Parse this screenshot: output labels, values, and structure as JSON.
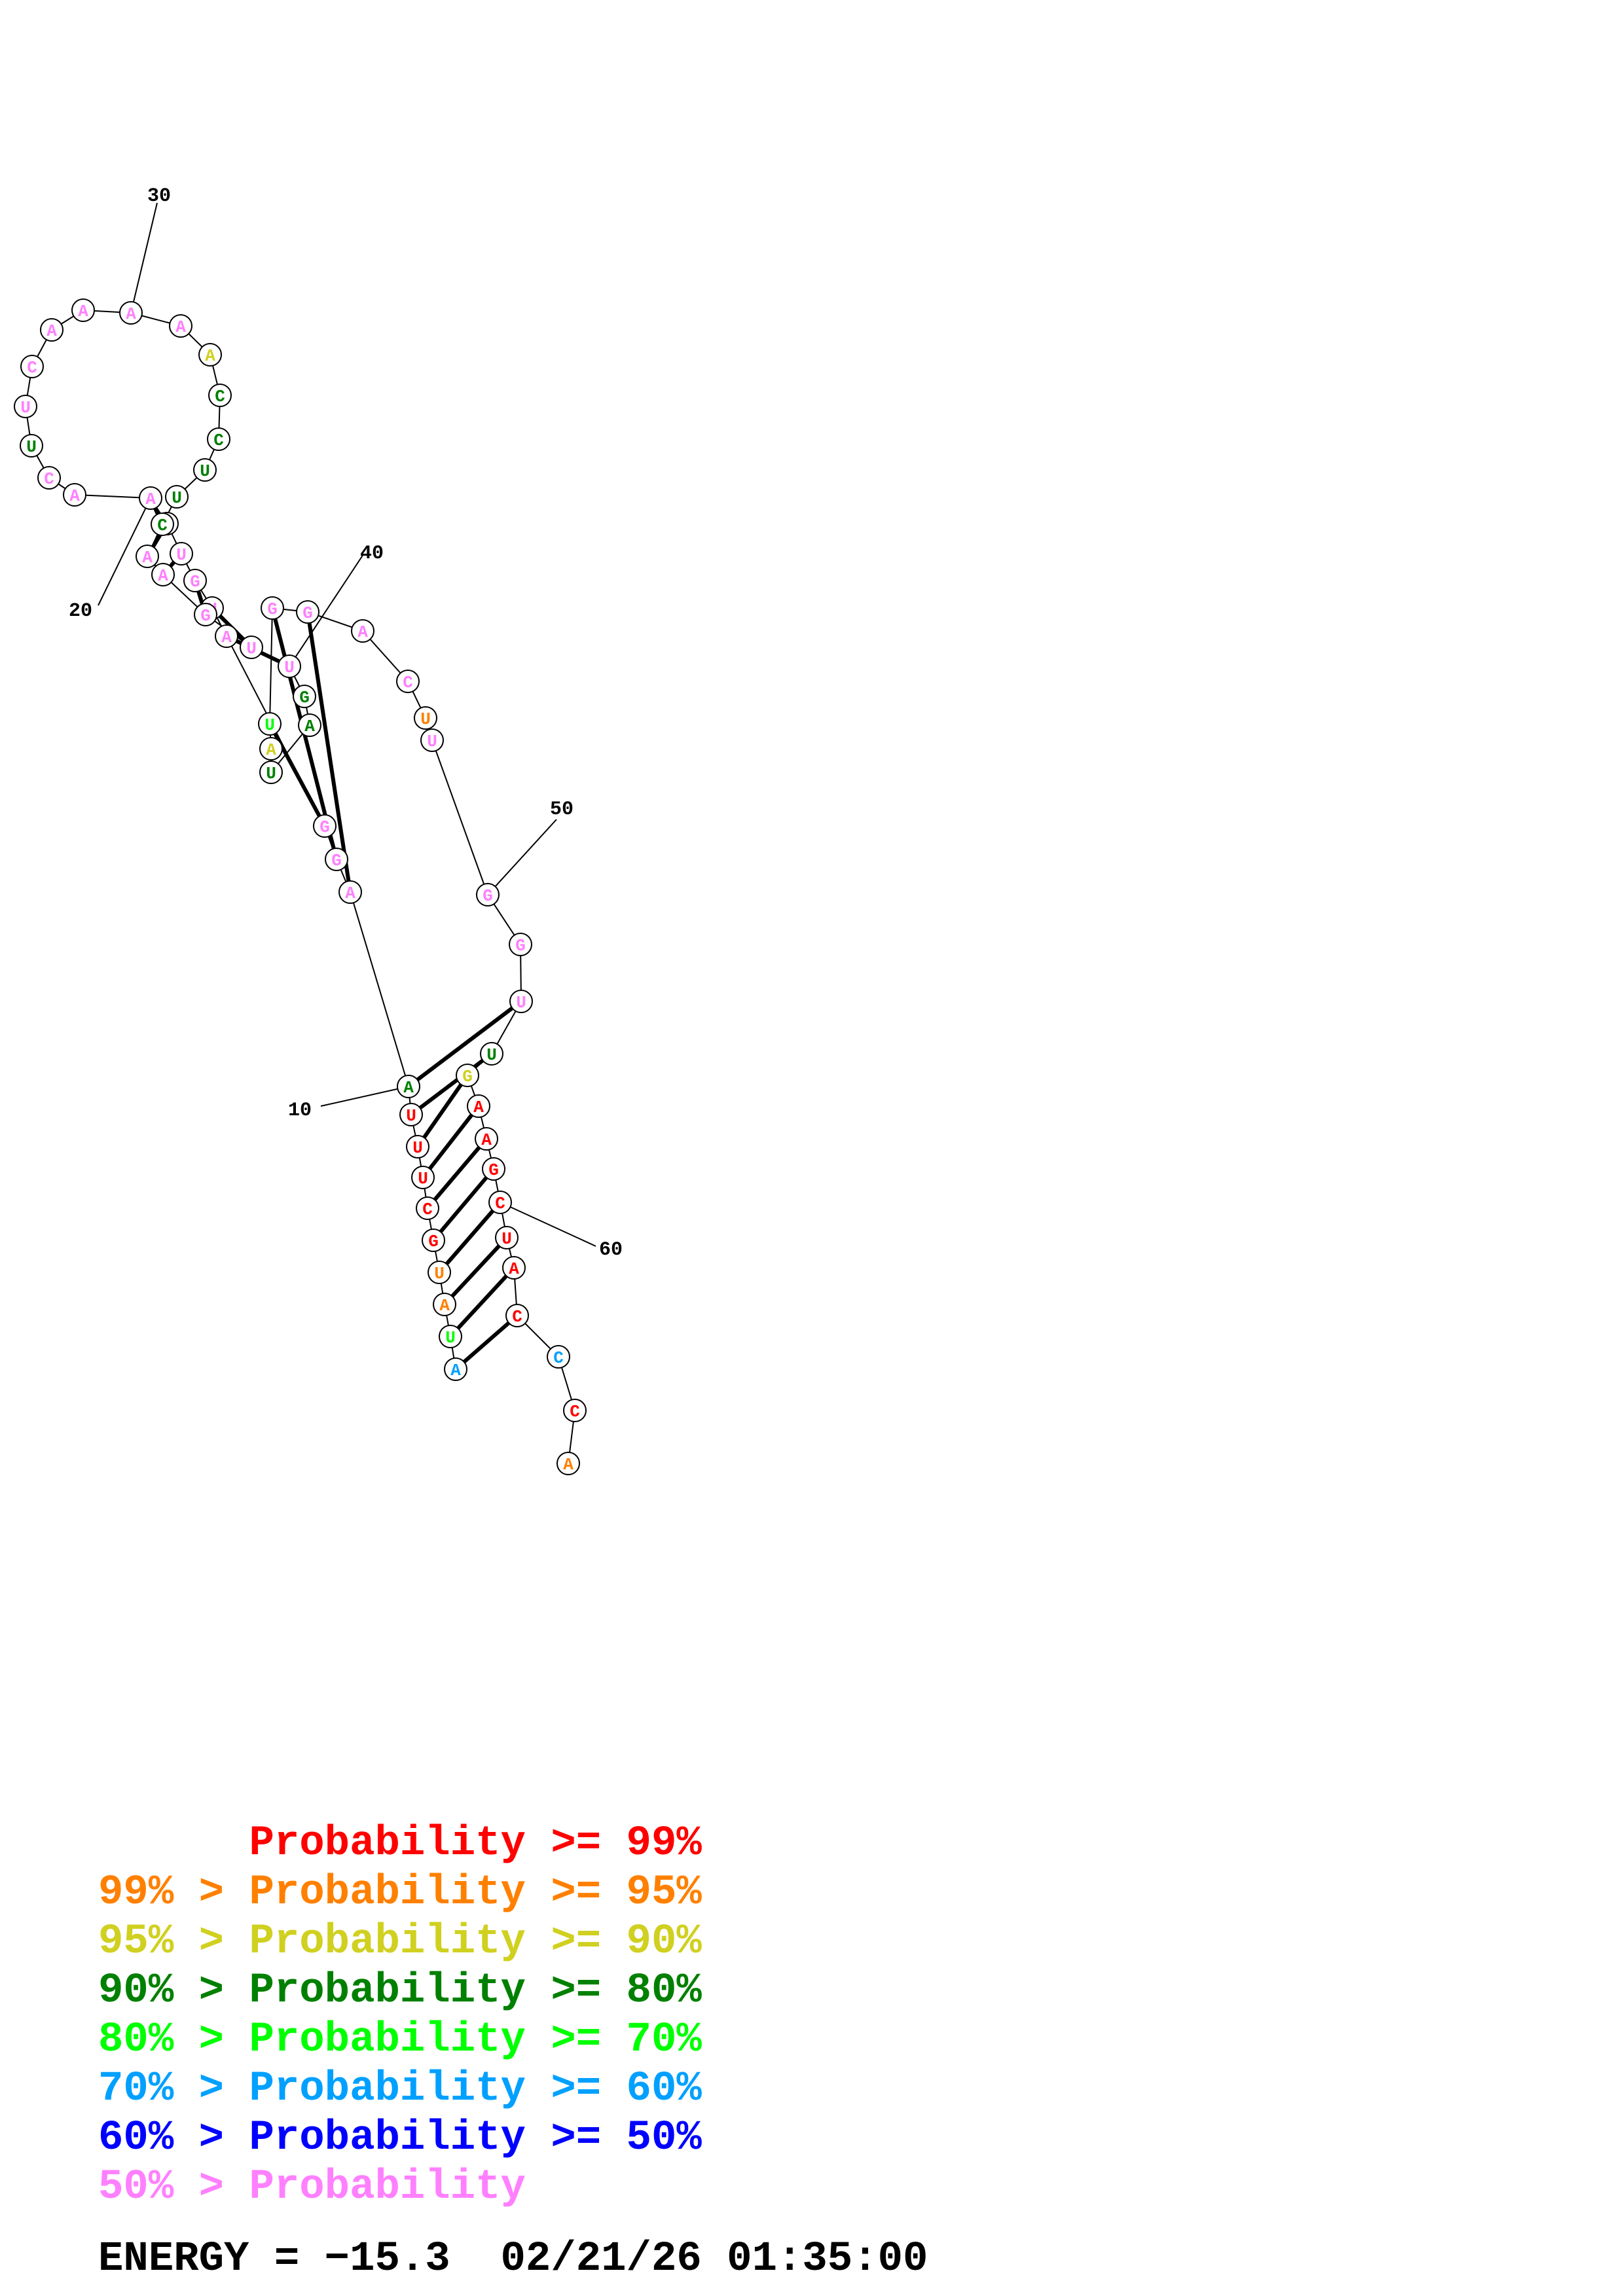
{
  "structure": {
    "sequence": "AUAUGCUUUAAGGAUGUUAACUUCAAAAACCUUCAAGUUGAUAUGGACUUGGUUGAAGCUACCCA",
    "numbering": [
      {
        "n": 10,
        "label": "10"
      },
      {
        "n": 20,
        "label": "20"
      },
      {
        "n": 30,
        "label": "30"
      },
      {
        "n": 40,
        "label": "40"
      },
      {
        "n": 50,
        "label": "50"
      },
      {
        "n": 60,
        "label": "60"
      }
    ],
    "pairs": [
      [
        1,
        62
      ],
      [
        2,
        61
      ],
      [
        3,
        60
      ],
      [
        4,
        59
      ],
      [
        5,
        58
      ],
      [
        6,
        57
      ],
      [
        7,
        56
      ],
      [
        8,
        55
      ],
      [
        9,
        54
      ],
      [
        10,
        53
      ],
      [
        11,
        46
      ],
      [
        12,
        45
      ],
      [
        13,
        44
      ],
      [
        14,
        39
      ],
      [
        15,
        38
      ],
      [
        16,
        37
      ],
      [
        17,
        36
      ],
      [
        18,
        35
      ],
      [
        19,
        34
      ]
    ],
    "probability_class": [
      5,
      4,
      1,
      1,
      0,
      0,
      0,
      0,
      0,
      3,
      7,
      7,
      7,
      7,
      7,
      7,
      7,
      7,
      7,
      7,
      7,
      3,
      7,
      7,
      7,
      7,
      7,
      7,
      2,
      3,
      3,
      3,
      3,
      3,
      7,
      7,
      7,
      7,
      7,
      3,
      3,
      3,
      2,
      4,
      7,
      7,
      7,
      7,
      1,
      7,
      7,
      7,
      7,
      3,
      2,
      0,
      0,
      0,
      0,
      0,
      0,
      0,
      5,
      0,
      1,
      0,
      0
    ]
  },
  "legend": [
    {
      "text": "      Probability >= 99%",
      "color": "#ff0000"
    },
    {
      "text": "99% > Probability >= 95%",
      "color": "#ff8000"
    },
    {
      "text": "95% > Probability >= 90%",
      "color": "#d0d020"
    },
    {
      "text": "90% > Probability >= 80%",
      "color": "#008000"
    },
    {
      "text": "80% > Probability >= 70%",
      "color": "#00ff00"
    },
    {
      "text": "70% > Probability >= 60%",
      "color": "#00a0ff"
    },
    {
      "text": "60% > Probability >= 50%",
      "color": "#0000ff"
    },
    {
      "text": "50% > Probability",
      "color": "#ff80ff"
    }
  ],
  "energy_line": "ENERGY = −15.3  02/21/26 01:35:00"
}
